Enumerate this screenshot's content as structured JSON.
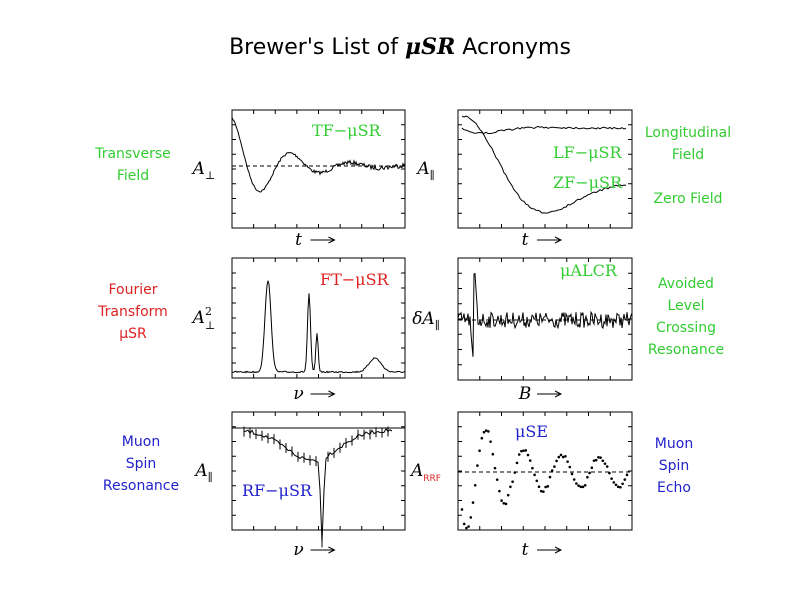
{
  "title": {
    "prefix": "Brewer's List of ",
    "emphasis": "μSR",
    "suffix": " Acronyms"
  },
  "panels": [
    {
      "tags": [
        "TF−μSR"
      ],
      "ylabel": {
        "base": "A",
        "sub": "⊥"
      },
      "xlabel": "t"
    },
    {
      "tags": [
        "LF−μSR",
        "ZF−μSR"
      ],
      "ylabel": {
        "base": "A",
        "sub": "∥"
      },
      "xlabel": "t"
    },
    {
      "tags": [
        "FT−μSR"
      ],
      "ylabel": {
        "base": "A",
        "sub": "⊥",
        "sup": "2"
      },
      "xlabel": "ν"
    },
    {
      "tags": [
        "μALCR"
      ],
      "ylabel": {
        "base": "δA",
        "sub": "∥"
      },
      "xlabel": "B"
    },
    {
      "tags": [
        "RF−μSR"
      ],
      "ylabel": {
        "base": "A",
        "sub": "∥"
      },
      "xlabel": "ν"
    },
    {
      "tags": [
        "μSE"
      ],
      "ylabel": {
        "base": "A",
        "sub": "RRF"
      },
      "xlabel": "t"
    }
  ],
  "side_labels": [
    {
      "lines": [
        "Transverse",
        "Field"
      ]
    },
    {
      "lines": [
        "Longitudinal",
        "Field"
      ]
    },
    {
      "lines": [
        "Zero Field"
      ]
    },
    {
      "lines": [
        "Fourier",
        "Transform",
        "μSR"
      ]
    },
    {
      "lines": [
        "Avoided",
        "Level",
        "Crossing",
        "Resonance"
      ]
    },
    {
      "lines": [
        "Muon",
        "Spin",
        "Resonance"
      ]
    },
    {
      "lines": [
        "Muon",
        "Spin",
        "Echo"
      ]
    }
  ]
}
